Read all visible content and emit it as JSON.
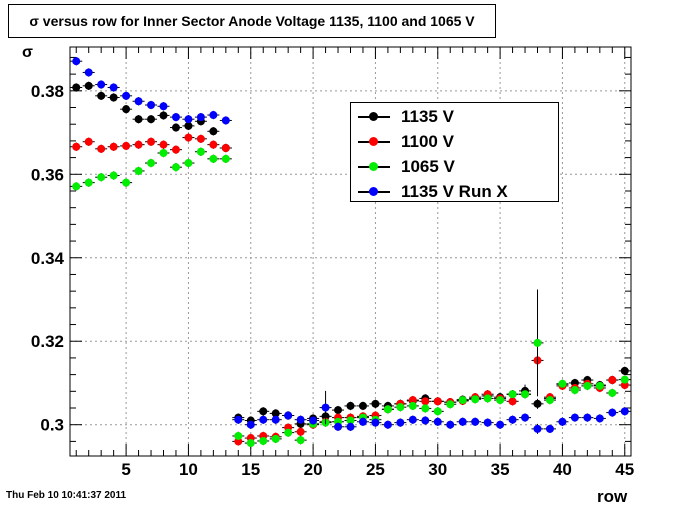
{
  "chart_data": {
    "type": "scatter",
    "title": "σ versus row for Inner Sector Anode Voltage 1135, 1100 and 1065 V",
    "xlabel": "row",
    "ylabel": "σ",
    "xlim": [
      0.5,
      45.5
    ],
    "ylim": [
      0.2925,
      0.3905
    ],
    "xticks": [
      5,
      10,
      15,
      20,
      25,
      30,
      35,
      40,
      45
    ],
    "yticks": [
      0.3,
      0.32,
      0.34,
      0.36,
      0.38
    ],
    "ytick_labels": [
      "0.3",
      "0.32",
      "0.34",
      "0.36",
      "0.38"
    ],
    "grid": true,
    "legend_position": "top-right",
    "series": [
      {
        "name": "1135 V",
        "color": "#000000",
        "x": [
          1,
          2,
          3,
          4,
          5,
          6,
          7,
          8,
          9,
          10,
          11,
          12,
          13,
          14,
          15,
          16,
          17,
          18,
          19,
          20,
          21,
          22,
          23,
          24,
          25,
          26,
          27,
          28,
          29,
          30,
          31,
          32,
          33,
          34,
          35,
          36,
          37,
          38,
          39,
          40,
          41,
          42,
          43,
          44,
          45
        ],
        "y": [
          0.3808,
          0.3812,
          0.3788,
          0.3784,
          0.3756,
          0.3732,
          0.3732,
          0.3741,
          0.3712,
          0.3716,
          0.3727,
          0.3703,
          0.3663,
          0.3017,
          0.301,
          0.3032,
          0.3027,
          0.3022,
          0.3002,
          0.3015,
          0.302,
          0.3035,
          0.3045,
          0.3045,
          0.305,
          0.3045,
          0.305,
          0.3057,
          0.3063,
          0.3056,
          0.3054,
          0.306,
          0.3063,
          0.3069,
          0.3066,
          0.3073,
          0.3081,
          0.305,
          0.3063,
          0.3097,
          0.31,
          0.3107,
          0.3095,
          0.3107,
          0.3129
        ],
        "err": [
          0.001,
          0.001,
          0.001,
          0.001,
          0.001,
          0.001,
          0.001,
          0.001,
          0.001,
          0.001,
          0.001,
          0.001,
          0.001,
          0.001,
          0.001,
          0.001,
          0.001,
          0.001,
          0.001,
          0.001,
          0.001,
          0.001,
          0.001,
          0.001,
          0.001,
          0.001,
          0.001,
          0.001,
          0.001,
          0.001,
          0.001,
          0.001,
          0.001,
          0.001,
          0.001,
          0.001,
          0.0015,
          0.0012,
          0.001,
          0.001,
          0.001,
          0.001,
          0.001,
          0.001,
          0.001
        ]
      },
      {
        "name": "1100 V",
        "color": "#ff0000",
        "x": [
          1,
          2,
          3,
          4,
          5,
          6,
          7,
          8,
          9,
          10,
          11,
          12,
          13,
          14,
          15,
          16,
          17,
          18,
          19,
          20,
          21,
          22,
          23,
          24,
          25,
          26,
          27,
          28,
          29,
          30,
          31,
          32,
          33,
          34,
          35,
          36,
          37,
          38,
          39,
          40,
          41,
          42,
          43,
          44,
          45
        ],
        "y": [
          0.3666,
          0.3678,
          0.3661,
          0.3666,
          0.3668,
          0.3671,
          0.3678,
          0.3671,
          0.3659,
          0.3688,
          0.3685,
          0.3671,
          0.3663,
          0.296,
          0.2968,
          0.2973,
          0.2971,
          0.2993,
          0.2983,
          0.3,
          0.3007,
          0.3017,
          0.3017,
          0.302,
          0.3022,
          0.3037,
          0.305,
          0.3059,
          0.3056,
          0.3056,
          0.3054,
          0.3057,
          0.3066,
          0.3073,
          0.3063,
          0.3056,
          0.3073,
          0.3154,
          0.3066,
          0.3093,
          0.3088,
          0.3098,
          0.3088,
          0.3107,
          0.3095
        ],
        "err": [
          0.001,
          0.001,
          0.001,
          0.001,
          0.001,
          0.001,
          0.001,
          0.001,
          0.001,
          0.001,
          0.001,
          0.001,
          0.001,
          0.001,
          0.001,
          0.001,
          0.001,
          0.001,
          0.001,
          0.001,
          0.001,
          0.001,
          0.001,
          0.001,
          0.001,
          0.001,
          0.001,
          0.001,
          0.001,
          0.001,
          0.001,
          0.001,
          0.001,
          0.001,
          0.001,
          0.001,
          0.001,
          0.0065,
          0.001,
          0.001,
          0.001,
          0.001,
          0.001,
          0.001,
          0.001
        ]
      },
      {
        "name": "1065 V",
        "color": "#00ee00",
        "x": [
          1,
          2,
          3,
          4,
          5,
          6,
          7,
          8,
          9,
          10,
          11,
          12,
          13,
          14,
          15,
          16,
          17,
          18,
          19,
          20,
          21,
          22,
          23,
          24,
          25,
          26,
          27,
          28,
          29,
          30,
          31,
          32,
          33,
          34,
          35,
          36,
          37,
          38,
          39,
          40,
          41,
          42,
          43,
          44,
          45
        ],
        "y": [
          0.3571,
          0.358,
          0.3593,
          0.3597,
          0.358,
          0.3608,
          0.3627,
          0.3651,
          0.3617,
          0.3627,
          0.3654,
          0.3637,
          0.3637,
          0.2973,
          0.2956,
          0.2961,
          0.2966,
          0.2981,
          0.2963,
          0.3002,
          0.3005,
          0.3007,
          0.301,
          0.3017,
          0.3012,
          0.3037,
          0.3042,
          0.3045,
          0.3039,
          0.3032,
          0.3049,
          0.3059,
          0.3061,
          0.3063,
          0.3059,
          0.3073,
          0.3073,
          0.3196,
          0.3059,
          0.3098,
          0.3083,
          0.3093,
          0.3093,
          0.3076,
          0.3108
        ],
        "err": [
          0.001,
          0.001,
          0.001,
          0.001,
          0.001,
          0.001,
          0.001,
          0.001,
          0.001,
          0.001,
          0.001,
          0.001,
          0.001,
          0.001,
          0.001,
          0.001,
          0.001,
          0.001,
          0.001,
          0.001,
          0.001,
          0.001,
          0.001,
          0.001,
          0.001,
          0.001,
          0.001,
          0.001,
          0.001,
          0.001,
          0.001,
          0.001,
          0.001,
          0.001,
          0.001,
          0.001,
          0.001,
          0.0128,
          0.001,
          0.001,
          0.001,
          0.001,
          0.001,
          0.001,
          0.001
        ]
      },
      {
        "name": "1135 V Run X",
        "color": "#0000ff",
        "x": [
          1,
          2,
          3,
          4,
          5,
          6,
          7,
          8,
          9,
          10,
          11,
          12,
          13,
          14,
          15,
          16,
          17,
          18,
          19,
          20,
          21,
          22,
          23,
          24,
          25,
          26,
          27,
          28,
          29,
          30,
          31,
          32,
          33,
          34,
          35,
          36,
          37,
          38,
          39,
          40,
          41,
          42,
          43,
          44,
          45
        ],
        "y": [
          0.3871,
          0.3844,
          0.3815,
          0.3808,
          0.3788,
          0.3775,
          0.3766,
          0.3763,
          0.3737,
          0.3732,
          0.3737,
          0.3742,
          0.3729,
          0.3012,
          0.3,
          0.3012,
          0.3012,
          0.3022,
          0.3012,
          0.301,
          0.3041,
          0.2995,
          0.2995,
          0.3007,
          0.3005,
          0.3,
          0.3005,
          0.3012,
          0.301,
          0.3007,
          0.3,
          0.3007,
          0.3007,
          0.3005,
          0.3,
          0.3012,
          0.3017,
          0.299,
          0.299,
          0.3007,
          0.3017,
          0.3017,
          0.3015,
          0.3029,
          0.3032
        ],
        "err": [
          0.001,
          0.001,
          0.001,
          0.001,
          0.001,
          0.001,
          0.001,
          0.001,
          0.001,
          0.001,
          0.001,
          0.001,
          0.001,
          0.001,
          0.001,
          0.001,
          0.001,
          0.001,
          0.001,
          0.001,
          0.004,
          0.001,
          0.001,
          0.001,
          0.001,
          0.001,
          0.001,
          0.001,
          0.001,
          0.001,
          0.001,
          0.001,
          0.001,
          0.001,
          0.001,
          0.001,
          0.001,
          0.0012,
          0.001,
          0.001,
          0.001,
          0.001,
          0.001,
          0.001,
          0.001
        ]
      }
    ]
  },
  "timestamp": "Thu Feb 10 10:41:37 2011"
}
